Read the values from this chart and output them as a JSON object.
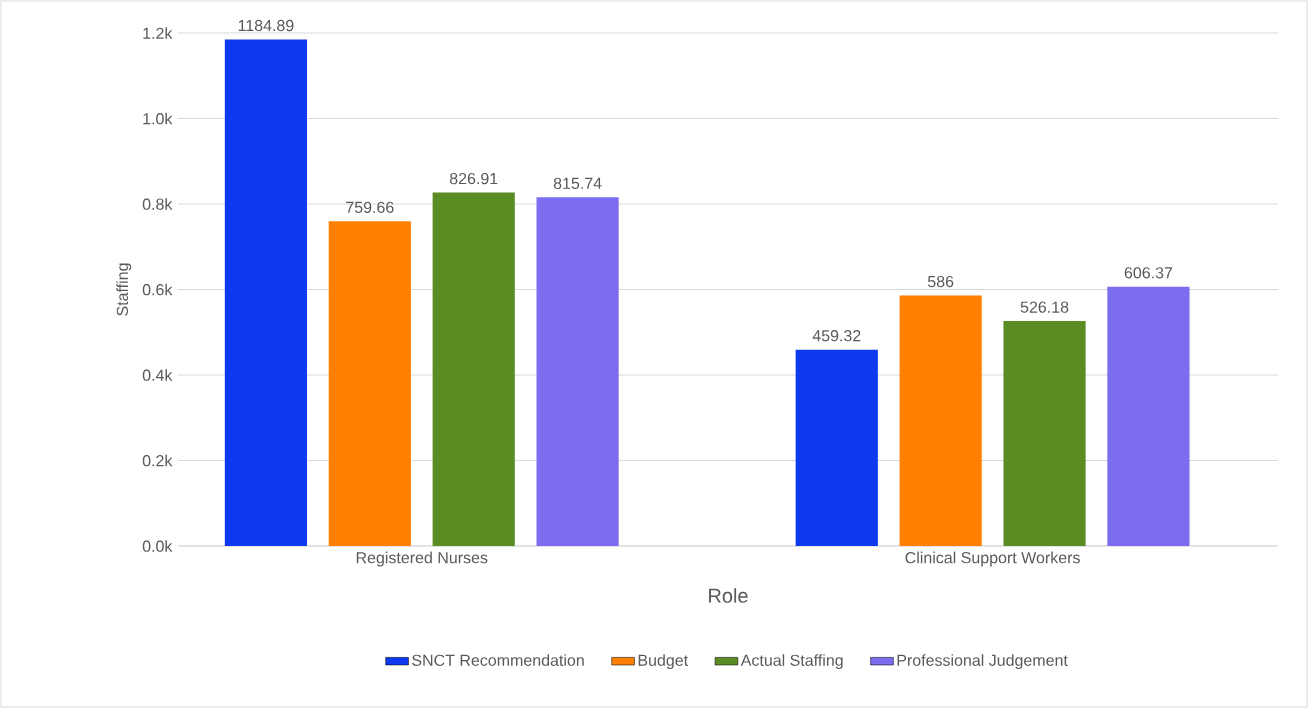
{
  "chart_data": {
    "type": "bar",
    "xlabel": "Role",
    "ylabel": "Staffing",
    "categories": [
      "Registered Nurses",
      "Clinical Support Workers"
    ],
    "series": [
      {
        "name": "SNCT Recommendation",
        "color": "#0d39f0",
        "values": [
          1184.89,
          459.32
        ]
      },
      {
        "name": "Budget",
        "color": "#ff7f00",
        "values": [
          759.66,
          586
        ]
      },
      {
        "name": "Actual Staffing",
        "color": "#5b8c23",
        "values": [
          826.91,
          526.18
        ]
      },
      {
        "name": "Professional Judgement",
        "color": "#7b6cf0",
        "values": [
          815.74,
          606.37
        ]
      }
    ],
    "ylim": [
      0,
      1200
    ],
    "yticks": [
      {
        "value": 0,
        "label": "0.0k"
      },
      {
        "value": 200,
        "label": "0.2k"
      },
      {
        "value": 400,
        "label": "0.4k"
      },
      {
        "value": 600,
        "label": "0.6k"
      },
      {
        "value": 800,
        "label": "0.8k"
      },
      {
        "value": 1000,
        "label": "1.0k"
      },
      {
        "value": 1200,
        "label": "1.2k"
      }
    ],
    "grid": "y",
    "legend": "bottom",
    "data_labels": true
  }
}
